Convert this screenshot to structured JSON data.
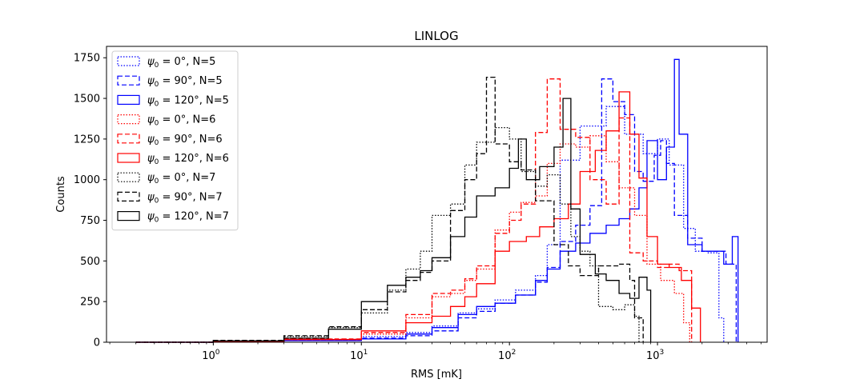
{
  "chart_data": {
    "type": "histogram",
    "title": "LINLOG",
    "xlabel": "RMS [mK]",
    "ylabel": "Counts",
    "xscale": "log",
    "xlim": [
      0.19,
      5500
    ],
    "ylim": [
      0,
      1820
    ],
    "x_ticks": [
      {
        "value": 1,
        "base": "10",
        "exp": "0"
      },
      {
        "value": 10,
        "base": "10",
        "exp": "1"
      },
      {
        "value": 100,
        "base": "10",
        "exp": "2"
      },
      {
        "value": 1000,
        "base": "10",
        "exp": "3"
      }
    ],
    "y_ticks": [
      0,
      250,
      500,
      750,
      1000,
      1250,
      1500,
      1750
    ],
    "legend_position": "upper-left",
    "series": [
      {
        "label_prefix": "ψ",
        "label_sub": "0",
        "label_suffix": " = 0°, N=5",
        "color": "#0000ff",
        "linestyle": "dotted",
        "points": [
          [
            0.3,
            0
          ],
          [
            1,
            8
          ],
          [
            3,
            15
          ],
          [
            10,
            35
          ],
          [
            20,
            60
          ],
          [
            30,
            100
          ],
          [
            45,
            180
          ],
          [
            60,
            205
          ],
          [
            80,
            260
          ],
          [
            110,
            320
          ],
          [
            150,
            410
          ],
          [
            180,
            600
          ],
          [
            220,
            1120
          ],
          [
            300,
            1330
          ],
          [
            450,
            1450
          ],
          [
            600,
            1280
          ],
          [
            800,
            1160
          ],
          [
            1000,
            1250
          ],
          [
            1200,
            1090
          ],
          [
            1500,
            700
          ],
          [
            1800,
            560
          ],
          [
            2200,
            550
          ],
          [
            2600,
            150
          ],
          [
            2800,
            0
          ]
        ]
      },
      {
        "label_prefix": "ψ",
        "label_sub": "0",
        "label_suffix": " = 90°, N=5",
        "color": "#0000ff",
        "linestyle": "dashed",
        "points": [
          [
            0.3,
            0
          ],
          [
            1,
            5
          ],
          [
            3,
            12
          ],
          [
            10,
            25
          ],
          [
            20,
            40
          ],
          [
            30,
            70
          ],
          [
            45,
            150
          ],
          [
            60,
            190
          ],
          [
            80,
            240
          ],
          [
            110,
            290
          ],
          [
            150,
            370
          ],
          [
            180,
            460
          ],
          [
            220,
            620
          ],
          [
            280,
            720
          ],
          [
            350,
            840
          ],
          [
            420,
            1620
          ],
          [
            500,
            1480
          ],
          [
            600,
            1400
          ],
          [
            700,
            1050
          ],
          [
            800,
            990
          ],
          [
            950,
            1150
          ],
          [
            1050,
            1240
          ],
          [
            1150,
            1100
          ],
          [
            1300,
            780
          ],
          [
            1600,
            640
          ],
          [
            2000,
            560
          ],
          [
            2500,
            560
          ],
          [
            2900,
            480
          ],
          [
            3400,
            0
          ]
        ]
      },
      {
        "label_prefix": "ψ",
        "label_sub": "0",
        "label_suffix": " = 120°, N=5",
        "color": "#0000ff",
        "linestyle": "solid",
        "points": [
          [
            0.3,
            0
          ],
          [
            1,
            4
          ],
          [
            3,
            10
          ],
          [
            10,
            20
          ],
          [
            20,
            50
          ],
          [
            30,
            90
          ],
          [
            45,
            170
          ],
          [
            60,
            220
          ],
          [
            80,
            240
          ],
          [
            110,
            290
          ],
          [
            150,
            380
          ],
          [
            180,
            450
          ],
          [
            220,
            560
          ],
          [
            280,
            610
          ],
          [
            350,
            670
          ],
          [
            450,
            720
          ],
          [
            550,
            760
          ],
          [
            650,
            820
          ],
          [
            750,
            950
          ],
          [
            850,
            1240
          ],
          [
            1000,
            1000
          ],
          [
            1150,
            1200
          ],
          [
            1300,
            1740
          ],
          [
            1400,
            1280
          ],
          [
            1600,
            600
          ],
          [
            2000,
            560
          ],
          [
            2500,
            560
          ],
          [
            2800,
            480
          ],
          [
            3200,
            650
          ],
          [
            3500,
            0
          ]
        ]
      },
      {
        "label_prefix": "ψ",
        "label_sub": "0",
        "label_suffix": " = 0°, N=6",
        "color": "#ff0000",
        "linestyle": "dotted",
        "points": [
          [
            0.3,
            0
          ],
          [
            1,
            8
          ],
          [
            3,
            18
          ],
          [
            10,
            50
          ],
          [
            20,
            150
          ],
          [
            30,
            280
          ],
          [
            40,
            300
          ],
          [
            50,
            380
          ],
          [
            60,
            450
          ],
          [
            80,
            690
          ],
          [
            100,
            800
          ],
          [
            120,
            860
          ],
          [
            150,
            900
          ],
          [
            180,
            1100
          ],
          [
            220,
            1220
          ],
          [
            280,
            1200
          ],
          [
            350,
            1270
          ],
          [
            450,
            1110
          ],
          [
            550,
            950
          ],
          [
            700,
            780
          ],
          [
            850,
            480
          ],
          [
            1050,
            380
          ],
          [
            1300,
            300
          ],
          [
            1500,
            120
          ],
          [
            1650,
            0
          ]
        ]
      },
      {
        "label_prefix": "ψ",
        "label_sub": "0",
        "label_suffix": " = 90°, N=6",
        "color": "#ff0000",
        "linestyle": "dashed",
        "points": [
          [
            0.3,
            0
          ],
          [
            1,
            10
          ],
          [
            3,
            20
          ],
          [
            10,
            60
          ],
          [
            20,
            170
          ],
          [
            30,
            300
          ],
          [
            40,
            320
          ],
          [
            50,
            390
          ],
          [
            60,
            470
          ],
          [
            80,
            670
          ],
          [
            100,
            750
          ],
          [
            120,
            850
          ],
          [
            150,
            1290
          ],
          [
            180,
            1620
          ],
          [
            220,
            1310
          ],
          [
            280,
            1260
          ],
          [
            350,
            1000
          ],
          [
            450,
            850
          ],
          [
            550,
            1380
          ],
          [
            650,
            550
          ],
          [
            800,
            500
          ],
          [
            1000,
            460
          ],
          [
            1200,
            480
          ],
          [
            1400,
            440
          ],
          [
            1700,
            0
          ]
        ]
      },
      {
        "label_prefix": "ψ",
        "label_sub": "0",
        "label_suffix": " = 120°, N=6",
        "color": "#ff0000",
        "linestyle": "solid",
        "points": [
          [
            0.3,
            0
          ],
          [
            1,
            6
          ],
          [
            3,
            16
          ],
          [
            10,
            70
          ],
          [
            20,
            120
          ],
          [
            30,
            160
          ],
          [
            40,
            220
          ],
          [
            50,
            280
          ],
          [
            60,
            360
          ],
          [
            80,
            560
          ],
          [
            100,
            620
          ],
          [
            130,
            650
          ],
          [
            160,
            710
          ],
          [
            200,
            760
          ],
          [
            250,
            850
          ],
          [
            300,
            1050
          ],
          [
            380,
            1180
          ],
          [
            450,
            1300
          ],
          [
            550,
            1540
          ],
          [
            650,
            1280
          ],
          [
            750,
            1010
          ],
          [
            850,
            650
          ],
          [
            1000,
            480
          ],
          [
            1200,
            460
          ],
          [
            1450,
            380
          ],
          [
            1700,
            210
          ],
          [
            1950,
            0
          ]
        ]
      },
      {
        "label_prefix": "ψ",
        "label_sub": "0",
        "label_suffix": " = 0°, N=7",
        "color": "#000000",
        "linestyle": "dotted",
        "points": [
          [
            0.3,
            0
          ],
          [
            1,
            8
          ],
          [
            3,
            35
          ],
          [
            6,
            90
          ],
          [
            10,
            180
          ],
          [
            15,
            320
          ],
          [
            20,
            450
          ],
          [
            25,
            560
          ],
          [
            30,
            780
          ],
          [
            40,
            850
          ],
          [
            50,
            1090
          ],
          [
            60,
            1230
          ],
          [
            80,
            1320
          ],
          [
            100,
            1250
          ],
          [
            120,
            1050
          ],
          [
            150,
            960
          ],
          [
            180,
            1030
          ],
          [
            220,
            850
          ],
          [
            260,
            650
          ],
          [
            300,
            560
          ],
          [
            350,
            470
          ],
          [
            400,
            220
          ],
          [
            500,
            200
          ],
          [
            600,
            230
          ],
          [
            700,
            160
          ],
          [
            750,
            0
          ]
        ]
      },
      {
        "label_prefix": "ψ",
        "label_sub": "0",
        "label_suffix": " = 90°, N=7",
        "color": "#000000",
        "linestyle": "dashed",
        "points": [
          [
            0.3,
            0
          ],
          [
            1,
            12
          ],
          [
            3,
            40
          ],
          [
            6,
            95
          ],
          [
            10,
            200
          ],
          [
            15,
            310
          ],
          [
            20,
            380
          ],
          [
            25,
            430
          ],
          [
            30,
            500
          ],
          [
            40,
            810
          ],
          [
            50,
            1000
          ],
          [
            60,
            1160
          ],
          [
            70,
            1630
          ],
          [
            80,
            1220
          ],
          [
            100,
            1110
          ],
          [
            120,
            1060
          ],
          [
            150,
            870
          ],
          [
            200,
            600
          ],
          [
            250,
            470
          ],
          [
            300,
            410
          ],
          [
            400,
            470
          ],
          [
            550,
            480
          ],
          [
            650,
            380
          ],
          [
            700,
            150
          ],
          [
            800,
            0
          ]
        ]
      },
      {
        "label_prefix": "ψ",
        "label_sub": "0",
        "label_suffix": " = 120°, N=7",
        "color": "#000000",
        "linestyle": "solid",
        "points": [
          [
            0.3,
            0
          ],
          [
            1,
            8
          ],
          [
            3,
            25
          ],
          [
            6,
            80
          ],
          [
            10,
            250
          ],
          [
            15,
            350
          ],
          [
            20,
            400
          ],
          [
            25,
            440
          ],
          [
            30,
            520
          ],
          [
            40,
            650
          ],
          [
            50,
            770
          ],
          [
            60,
            900
          ],
          [
            80,
            950
          ],
          [
            100,
            1070
          ],
          [
            115,
            1250
          ],
          [
            130,
            1000
          ],
          [
            160,
            1080
          ],
          [
            200,
            1200
          ],
          [
            230,
            1500
          ],
          [
            260,
            820
          ],
          [
            300,
            540
          ],
          [
            380,
            420
          ],
          [
            450,
            380
          ],
          [
            550,
            300
          ],
          [
            650,
            270
          ],
          [
            750,
            400
          ],
          [
            850,
            320
          ],
          [
            900,
            0
          ]
        ]
      }
    ]
  }
}
